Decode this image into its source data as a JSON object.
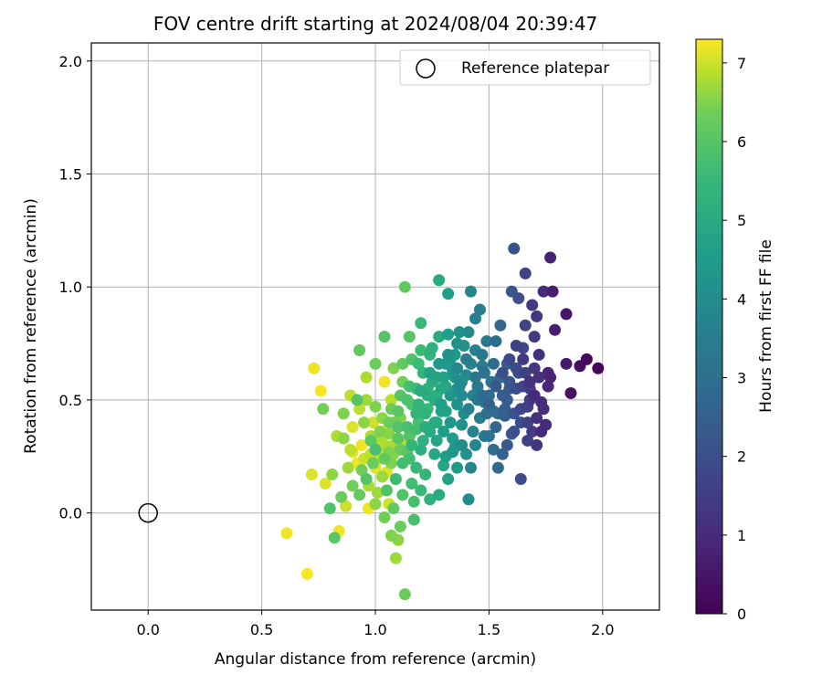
{
  "chart_data": {
    "type": "scatter",
    "title": "FOV centre drift starting at 2024/08/04 20:39:47",
    "xlabel": "Angular distance from reference (arcmin)",
    "ylabel": "Rotation from reference (arcmin)",
    "xlim": [
      -0.25,
      2.25
    ],
    "ylim": [
      -0.43,
      2.08
    ],
    "xticks": [
      "0.0",
      "0.5",
      "1.0",
      "1.5",
      "2.0"
    ],
    "yticks": [
      "0.0",
      "0.5",
      "1.0",
      "1.5",
      "2.0"
    ],
    "grid": true,
    "legend": {
      "position": "top-right",
      "entries": [
        "Reference platepar"
      ]
    },
    "reference_point": {
      "x": 0.0,
      "y": 0.0
    },
    "colorbar": {
      "label": "Hours from first FF file",
      "range": [
        0,
        7.3
      ],
      "ticks": [
        "0",
        "1",
        "2",
        "3",
        "4",
        "5",
        "6",
        "7"
      ],
      "colormap": "viridis"
    },
    "points_note": "x, y in arcmin; h = hours from first FF file (colour)",
    "points": [
      [
        1.98,
        0.64,
        0.1
      ],
      [
        1.93,
        0.68,
        0.2
      ],
      [
        1.9,
        0.65,
        0.3
      ],
      [
        1.86,
        0.53,
        0.4
      ],
      [
        1.84,
        0.88,
        0.5
      ],
      [
        1.84,
        0.66,
        0.6
      ],
      [
        1.78,
        0.98,
        0.7
      ],
      [
        1.77,
        1.13,
        0.8
      ],
      [
        1.76,
        0.62,
        0.9
      ],
      [
        1.75,
        0.39,
        1.0
      ],
      [
        1.73,
        0.49,
        1.1
      ],
      [
        1.72,
        0.6,
        1.2
      ],
      [
        1.71,
        0.87,
        1.3
      ],
      [
        1.7,
        0.78,
        1.4
      ],
      [
        1.68,
        0.55,
        1.5
      ],
      [
        1.67,
        0.32,
        1.6
      ],
      [
        1.66,
        1.06,
        1.7
      ],
      [
        1.65,
        0.73,
        1.8
      ],
      [
        1.64,
        0.15,
        1.9
      ],
      [
        1.63,
        0.62,
        2.0
      ],
      [
        1.61,
        1.17,
        2.1
      ],
      [
        1.6,
        0.35,
        2.2
      ],
      [
        1.59,
        0.55,
        2.3
      ],
      [
        1.58,
        0.66,
        2.4
      ],
      [
        1.57,
        0.43,
        2.5
      ],
      [
        1.56,
        0.26,
        2.6
      ],
      [
        1.55,
        0.83,
        2.7
      ],
      [
        1.54,
        0.2,
        2.8
      ],
      [
        1.53,
        0.76,
        2.9
      ],
      [
        1.52,
        0.45,
        3.0
      ],
      [
        1.51,
        0.58,
        3.1
      ],
      [
        1.5,
        0.34,
        3.2
      ],
      [
        1.48,
        0.49,
        3.3
      ],
      [
        1.47,
        0.65,
        3.4
      ],
      [
        1.46,
        0.9,
        3.5
      ],
      [
        1.44,
        0.72,
        3.6
      ],
      [
        1.43,
        0.52,
        3.7
      ],
      [
        1.42,
        0.98,
        3.8
      ],
      [
        1.41,
        0.06,
        3.9
      ],
      [
        1.4,
        0.61,
        4.0
      ],
      [
        1.38,
        0.39,
        4.1
      ],
      [
        1.37,
        0.8,
        4.2
      ],
      [
        1.36,
        0.55,
        4.3
      ],
      [
        1.35,
        0.29,
        4.4
      ],
      [
        1.33,
        0.68,
        4.5
      ],
      [
        1.32,
        0.97,
        4.6
      ],
      [
        1.31,
        0.45,
        4.7
      ],
      [
        1.3,
        0.21,
        4.8
      ],
      [
        1.29,
        0.55,
        4.9
      ],
      [
        1.28,
        1.03,
        5.0
      ],
      [
        1.27,
        0.4,
        5.1
      ],
      [
        1.25,
        0.73,
        5.2
      ],
      [
        1.23,
        0.55,
        5.3
      ],
      [
        1.22,
        0.17,
        5.4
      ],
      [
        1.2,
        0.84,
        5.5
      ],
      [
        1.19,
        0.66,
        5.6
      ],
      [
        1.18,
        0.37,
        5.7
      ],
      [
        1.17,
        0.05,
        5.8
      ],
      [
        1.16,
        0.48,
        5.9
      ],
      [
        1.15,
        0.78,
        6.0
      ],
      [
        1.14,
        0.27,
        6.1
      ],
      [
        1.13,
        1.0,
        6.2
      ],
      [
        1.13,
        -0.36,
        6.3
      ],
      [
        1.12,
        0.58,
        6.4
      ],
      [
        1.11,
        0.42,
        6.5
      ],
      [
        1.1,
        -0.12,
        6.6
      ],
      [
        1.09,
        -0.2,
        6.7
      ],
      [
        1.08,
        0.3,
        6.8
      ],
      [
        1.07,
        0.5,
        6.9
      ],
      [
        1.06,
        0.04,
        7.0
      ],
      [
        1.05,
        0.18,
        7.1
      ],
      [
        1.04,
        0.58,
        7.2
      ],
      [
        1.03,
        0.36,
        7.25
      ],
      [
        1.02,
        0.26,
        6.9
      ],
      [
        1.01,
        0.09,
        6.7
      ],
      [
        1.0,
        0.47,
        6.5
      ],
      [
        0.99,
        0.22,
        6.3
      ],
      [
        0.98,
        0.32,
        6.1
      ],
      [
        0.97,
        0.02,
        7.2
      ],
      [
        0.96,
        0.6,
        6.8
      ],
      [
        0.95,
        0.4,
        6.6
      ],
      [
        0.94,
        0.19,
        6.4
      ],
      [
        0.93,
        0.72,
        6.2
      ],
      [
        0.92,
        0.5,
        6.0
      ],
      [
        0.9,
        0.27,
        7.1
      ],
      [
        0.89,
        0.52,
        6.9
      ],
      [
        0.88,
        0.2,
        6.7
      ],
      [
        0.87,
        0.03,
        7.0
      ],
      [
        0.86,
        0.44,
        6.5
      ],
      [
        0.85,
        0.07,
        6.3
      ],
      [
        0.84,
        -0.08,
        7.2
      ],
      [
        0.83,
        0.34,
        6.8
      ],
      [
        0.82,
        -0.11,
        6.1
      ],
      [
        0.81,
        0.17,
        6.6
      ],
      [
        0.8,
        0.02,
        5.9
      ],
      [
        0.78,
        0.13,
        7.1
      ],
      [
        0.77,
        0.46,
        6.4
      ],
      [
        0.76,
        0.54,
        7.25
      ],
      [
        0.73,
        0.64,
        7.2
      ],
      [
        0.72,
        0.17,
        7.1
      ],
      [
        0.7,
        -0.27,
        7.25
      ],
      [
        0.61,
        -0.09,
        7.2
      ],
      [
        1.05,
        0.1,
        5.9
      ],
      [
        1.09,
        0.15,
        5.6
      ],
      [
        1.12,
        0.22,
        5.7
      ],
      [
        1.16,
        0.3,
        5.4
      ],
      [
        1.2,
        0.28,
        5.2
      ],
      [
        1.24,
        0.36,
        5.0
      ],
      [
        1.27,
        0.32,
        4.8
      ],
      [
        1.31,
        0.25,
        4.6
      ],
      [
        1.34,
        0.33,
        4.4
      ],
      [
        1.22,
        0.44,
        5.3
      ],
      [
        1.26,
        0.5,
        5.1
      ],
      [
        1.3,
        0.6,
        4.7
      ],
      [
        1.34,
        0.63,
        4.3
      ],
      [
        1.38,
        0.58,
        4.0
      ],
      [
        1.42,
        0.66,
        3.6
      ],
      [
        1.45,
        0.56,
        3.3
      ],
      [
        1.48,
        0.62,
        3.1
      ],
      [
        1.5,
        0.52,
        3.0
      ],
      [
        1.46,
        0.42,
        3.4
      ],
      [
        1.43,
        0.36,
        3.7
      ],
      [
        1.39,
        0.44,
        4.0
      ],
      [
        1.36,
        0.48,
        4.2
      ],
      [
        1.33,
        0.4,
        4.4
      ],
      [
        1.29,
        0.45,
        4.7
      ],
      [
        1.25,
        0.58,
        5.1
      ],
      [
        1.21,
        0.62,
        5.4
      ],
      [
        1.18,
        0.55,
        5.6
      ],
      [
        1.14,
        0.5,
        5.9
      ],
      [
        1.1,
        0.45,
        6.1
      ],
      [
        1.08,
        0.4,
        6.4
      ],
      [
        1.06,
        0.35,
        6.6
      ],
      [
        1.04,
        0.3,
        6.8
      ],
      [
        1.02,
        0.24,
        7.0
      ],
      [
        1.0,
        0.2,
        7.1
      ],
      [
        0.98,
        0.26,
        6.9
      ],
      [
        1.03,
        0.16,
        6.7
      ],
      [
        1.07,
        0.22,
        6.5
      ],
      [
        1.11,
        0.28,
        6.3
      ],
      [
        1.15,
        0.34,
        6.0
      ],
      [
        1.19,
        0.4,
        5.8
      ],
      [
        1.23,
        0.46,
        5.5
      ],
      [
        1.27,
        0.52,
        5.2
      ],
      [
        1.31,
        0.56,
        4.9
      ],
      [
        1.35,
        0.7,
        4.5
      ],
      [
        1.39,
        0.74,
        4.1
      ],
      [
        1.41,
        0.8,
        3.9
      ],
      [
        1.44,
        0.86,
        3.6
      ],
      [
        1.47,
        0.7,
        3.3
      ],
      [
        1.49,
        0.76,
        3.2
      ],
      [
        1.52,
        0.66,
        2.9
      ],
      [
        1.55,
        0.6,
        2.7
      ],
      [
        1.58,
        0.5,
        2.4
      ],
      [
        1.61,
        0.44,
        2.1
      ],
      [
        1.64,
        0.4,
        1.9
      ],
      [
        1.67,
        0.47,
        1.6
      ],
      [
        1.69,
        0.36,
        1.5
      ],
      [
        1.71,
        0.3,
        1.3
      ],
      [
        1.74,
        0.46,
        1.1
      ],
      [
        1.76,
        0.56,
        0.9
      ],
      [
        1.79,
        0.81,
        0.7
      ],
      [
        1.72,
        0.7,
        1.2
      ],
      [
        1.69,
        0.92,
        1.4
      ],
      [
        1.66,
        0.83,
        1.7
      ],
      [
        1.63,
        0.95,
        2.0
      ],
      [
        1.6,
        0.98,
        2.2
      ],
      [
        1.74,
        0.98,
        1.0
      ],
      [
        1.7,
        0.64,
        1.3
      ],
      [
        1.66,
        0.62,
        1.6
      ],
      [
        1.62,
        0.55,
        2.0
      ],
      [
        1.57,
        0.46,
        2.5
      ],
      [
        1.54,
        0.44,
        2.8
      ],
      [
        1.36,
        0.75,
        4.2
      ],
      [
        1.32,
        0.79,
        4.6
      ],
      [
        1.28,
        0.78,
        5.0
      ],
      [
        1.24,
        0.7,
        5.3
      ],
      [
        1.2,
        0.72,
        5.6
      ],
      [
        1.16,
        0.68,
        5.9
      ],
      [
        1.12,
        0.66,
        6.2
      ],
      [
        1.08,
        0.64,
        6.5
      ],
      [
        1.04,
        0.78,
        6.0
      ],
      [
        1.0,
        0.66,
        6.3
      ],
      [
        0.96,
        0.5,
        6.7
      ],
      [
        0.93,
        0.46,
        6.9
      ],
      [
        0.9,
        0.38,
        7.1
      ],
      [
        0.94,
        0.3,
        7.2
      ],
      [
        0.97,
        0.12,
        6.8
      ],
      [
        1.0,
        0.04,
        6.6
      ],
      [
        1.04,
        -0.02,
        6.4
      ],
      [
        1.08,
        0.02,
        6.2
      ],
      [
        1.12,
        0.08,
        5.9
      ],
      [
        1.16,
        0.13,
        5.7
      ],
      [
        1.2,
        0.1,
        5.5
      ],
      [
        1.24,
        0.06,
        5.3
      ],
      [
        1.28,
        0.08,
        5.0
      ],
      [
        1.32,
        0.15,
        4.7
      ],
      [
        1.36,
        0.2,
        4.4
      ],
      [
        1.4,
        0.26,
        4.1
      ],
      [
        1.44,
        0.3,
        3.8
      ],
      [
        1.48,
        0.34,
        3.4
      ],
      [
        1.52,
        0.28,
        3.0
      ],
      [
        1.11,
        -0.06,
        6.3
      ],
      [
        1.07,
        -0.1,
        6.5
      ],
      [
        1.17,
        -0.03,
        5.8
      ],
      [
        1.15,
        0.24,
        5.7
      ],
      [
        1.18,
        0.2,
        5.5
      ],
      [
        1.21,
        0.32,
        5.3
      ],
      [
        1.1,
        0.33,
        6.1
      ],
      [
        1.06,
        0.27,
        6.5
      ],
      [
        1.02,
        0.32,
        6.8
      ],
      [
        0.99,
        0.4,
        7.0
      ],
      [
        1.03,
        0.42,
        6.6
      ],
      [
        1.07,
        0.46,
        6.3
      ],
      [
        1.11,
        0.52,
        6.0
      ],
      [
        1.15,
        0.56,
        5.7
      ],
      [
        1.19,
        0.48,
        5.4
      ],
      [
        1.23,
        0.52,
        5.1
      ],
      [
        1.27,
        0.6,
        4.8
      ],
      [
        1.31,
        0.66,
        4.5
      ],
      [
        1.35,
        0.6,
        4.2
      ],
      [
        1.38,
        0.52,
        3.9
      ],
      [
        1.41,
        0.46,
        3.6
      ],
      [
        1.45,
        0.5,
        3.2
      ],
      [
        1.49,
        0.44,
        3.0
      ],
      [
        1.53,
        0.38,
        2.7
      ],
      [
        1.56,
        0.52,
        2.4
      ],
      [
        1.59,
        0.58,
        2.2
      ],
      [
        1.62,
        0.64,
        1.9
      ],
      [
        1.65,
        0.56,
        1.7
      ],
      [
        1.68,
        0.5,
        1.5
      ],
      [
        1.71,
        0.42,
        1.2
      ],
      [
        1.73,
        0.36,
        1.0
      ],
      [
        1.77,
        0.6,
        0.8
      ],
      [
        1.42,
        0.2,
        3.7
      ],
      [
        1.38,
        0.3,
        4.0
      ],
      [
        1.34,
        0.27,
        4.3
      ],
      [
        1.3,
        0.36,
        4.6
      ],
      [
        1.26,
        0.26,
        4.9
      ],
      [
        1.22,
        0.38,
        5.1
      ],
      [
        1.18,
        0.44,
        5.4
      ],
      [
        1.14,
        0.38,
        5.8
      ],
      [
        1.1,
        0.38,
        6.0
      ],
      [
        1.06,
        0.4,
        6.3
      ],
      [
        1.02,
        0.36,
        6.5
      ],
      [
        0.98,
        0.34,
        6.8
      ],
      [
        0.95,
        0.24,
        7.0
      ],
      [
        0.92,
        0.22,
        7.2
      ],
      [
        0.89,
        0.28,
        6.9
      ],
      [
        0.86,
        0.33,
        6.6
      ],
      [
        0.9,
        0.12,
        6.4
      ],
      [
        0.93,
        0.08,
        6.2
      ],
      [
        0.96,
        0.15,
        6.0
      ],
      [
        1.0,
        0.28,
        5.8
      ],
      [
        1.04,
        0.24,
        6.2
      ],
      [
        1.08,
        0.26,
        6.6
      ],
      [
        1.12,
        0.3,
        6.9
      ],
      [
        1.16,
        0.36,
        6.2
      ],
      [
        1.2,
        0.54,
        5.0
      ],
      [
        1.24,
        0.62,
        4.7
      ],
      [
        1.28,
        0.66,
        4.4
      ],
      [
        1.32,
        0.7,
        4.1
      ],
      [
        1.36,
        0.64,
        3.8
      ],
      [
        1.4,
        0.68,
        3.5
      ],
      [
        1.44,
        0.6,
        3.2
      ],
      [
        1.47,
        0.52,
        2.9
      ],
      [
        1.5,
        0.48,
        2.6
      ],
      [
        1.53,
        0.56,
        2.3
      ],
      [
        1.56,
        0.62,
        2.0
      ],
      [
        1.59,
        0.68,
        1.8
      ],
      [
        1.62,
        0.74,
        1.6
      ],
      [
        1.65,
        0.68,
        1.4
      ],
      [
        1.68,
        0.58,
        1.2
      ],
      [
        1.7,
        0.52,
        1.0
      ],
      [
        1.58,
        0.3,
        2.3
      ],
      [
        1.61,
        0.36,
        2.0
      ],
      [
        1.64,
        0.46,
        1.8
      ],
      [
        1.67,
        0.4,
        1.6
      ],
      [
        1.26,
        0.4,
        5.0
      ],
      [
        1.29,
        0.48,
        4.6
      ],
      [
        1.33,
        0.52,
        4.3
      ],
      [
        1.37,
        0.56,
        3.9
      ]
    ]
  }
}
